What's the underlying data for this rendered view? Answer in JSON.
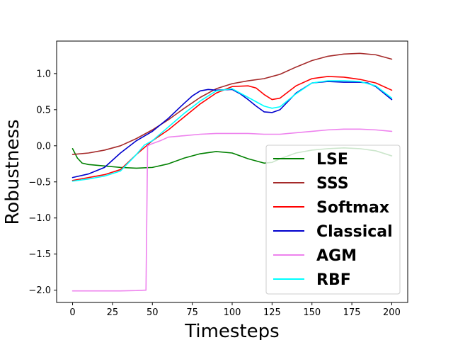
{
  "chart_data": {
    "type": "line",
    "title": "",
    "xlabel": "Timesteps",
    "ylabel": "Robustness",
    "xlim": [
      -10,
      210
    ],
    "ylim": [
      -2.17,
      1.45
    ],
    "xticks": [
      0,
      25,
      50,
      75,
      100,
      125,
      150,
      175,
      200
    ],
    "xtick_labels": [
      "0",
      "25",
      "50",
      "75",
      "100",
      "125",
      "150",
      "175",
      "200"
    ],
    "yticks": [
      -2.0,
      -1.5,
      -1.0,
      -0.5,
      0.0,
      0.5,
      1.0
    ],
    "ytick_labels": [
      "−2.0",
      "−1.5",
      "−1.0",
      "−0.5",
      "0.0",
      "0.5",
      "1.0"
    ],
    "grid": false,
    "legend_position": "lower-right",
    "series": [
      {
        "name": "LSE",
        "color": "#008000",
        "x": [
          0,
          3,
          6,
          10,
          20,
          30,
          40,
          50,
          60,
          70,
          80,
          90,
          100,
          110,
          120,
          125,
          130,
          140,
          150,
          160,
          170,
          180,
          190,
          200
        ],
        "y": [
          -0.04,
          -0.17,
          -0.24,
          -0.26,
          -0.28,
          -0.3,
          -0.31,
          -0.3,
          -0.25,
          -0.17,
          -0.11,
          -0.08,
          -0.1,
          -0.18,
          -0.24,
          -0.23,
          -0.18,
          -0.1,
          -0.06,
          -0.04,
          -0.03,
          -0.04,
          -0.07,
          -0.14
        ]
      },
      {
        "name": "SSS",
        "color": "#a52a2a",
        "x": [
          0,
          10,
          20,
          30,
          40,
          50,
          60,
          70,
          80,
          90,
          100,
          110,
          120,
          130,
          140,
          150,
          160,
          170,
          180,
          190,
          200
        ],
        "y": [
          -0.12,
          -0.1,
          -0.06,
          0.0,
          0.1,
          0.22,
          0.36,
          0.52,
          0.67,
          0.79,
          0.86,
          0.9,
          0.93,
          0.99,
          1.09,
          1.18,
          1.24,
          1.27,
          1.28,
          1.26,
          1.2
        ]
      },
      {
        "name": "Softmax",
        "color": "#ff0000",
        "x": [
          0,
          10,
          20,
          30,
          40,
          50,
          60,
          70,
          80,
          90,
          100,
          110,
          115,
          120,
          125,
          130,
          140,
          150,
          160,
          170,
          180,
          190,
          200
        ],
        "y": [
          -0.48,
          -0.44,
          -0.4,
          -0.33,
          -0.12,
          0.07,
          0.22,
          0.4,
          0.58,
          0.73,
          0.82,
          0.83,
          0.8,
          0.71,
          0.64,
          0.66,
          0.83,
          0.93,
          0.96,
          0.95,
          0.92,
          0.87,
          0.77
        ]
      },
      {
        "name": "Classical",
        "color": "#0000cd",
        "x": [
          0,
          10,
          20,
          30,
          40,
          50,
          60,
          70,
          75,
          80,
          85,
          90,
          100,
          105,
          110,
          115,
          120,
          125,
          130,
          140,
          150,
          160,
          170,
          180,
          185,
          190,
          200
        ],
        "y": [
          -0.44,
          -0.39,
          -0.3,
          -0.1,
          0.07,
          0.2,
          0.38,
          0.59,
          0.69,
          0.76,
          0.78,
          0.77,
          0.78,
          0.72,
          0.64,
          0.55,
          0.47,
          0.46,
          0.5,
          0.73,
          0.87,
          0.89,
          0.88,
          0.88,
          0.87,
          0.82,
          0.64
        ]
      },
      {
        "name": "AGM",
        "color": "#ee82ee",
        "x": [
          0,
          10,
          20,
          30,
          40,
          45,
          46,
          47,
          50,
          55,
          60,
          70,
          80,
          90,
          100,
          110,
          120,
          130,
          140,
          150,
          160,
          170,
          180,
          190,
          200
        ],
        "y": [
          -2.01,
          -2.01,
          -2.01,
          -2.01,
          -2.005,
          -2.0,
          -2.0,
          0.0,
          0.03,
          0.07,
          0.12,
          0.14,
          0.16,
          0.17,
          0.17,
          0.17,
          0.16,
          0.16,
          0.18,
          0.2,
          0.22,
          0.23,
          0.23,
          0.22,
          0.2
        ]
      },
      {
        "name": "RBF",
        "color": "#00ffff",
        "x": [
          0,
          10,
          20,
          30,
          40,
          45,
          50,
          60,
          70,
          80,
          90,
          100,
          110,
          120,
          125,
          130,
          140,
          150,
          160,
          170,
          180,
          190,
          200
        ],
        "y": [
          -0.49,
          -0.46,
          -0.42,
          -0.35,
          -0.12,
          0.01,
          0.07,
          0.26,
          0.45,
          0.62,
          0.76,
          0.79,
          0.67,
          0.55,
          0.52,
          0.54,
          0.72,
          0.87,
          0.9,
          0.9,
          0.89,
          0.83,
          0.66
        ]
      }
    ]
  }
}
